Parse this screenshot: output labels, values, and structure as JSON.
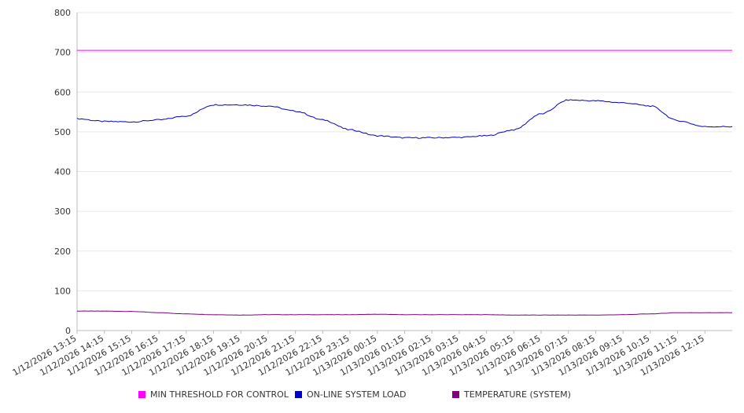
{
  "chart_data": {
    "type": "line",
    "title": "",
    "xlabel": "",
    "ylabel": "",
    "ylim": [
      0,
      800
    ],
    "y_ticks": [
      0,
      100,
      200,
      300,
      400,
      500,
      600,
      700,
      800
    ],
    "x_tick_labels": [
      "1/12/2026 13:15",
      "1/12/2026 14:15",
      "1/12/2026 15:15",
      "1/12/2026 16:15",
      "1/12/2026 17:15",
      "1/12/2026 18:15",
      "1/12/2026 19:15",
      "1/12/2026 20:15",
      "1/12/2026 21:15",
      "1/12/2026 22:15",
      "1/12/2026 23:15",
      "1/13/2026 00:15",
      "1/13/2026 01:15",
      "1/13/2026 02:15",
      "1/13/2026 03:15",
      "1/13/2026 04:15",
      "1/13/2026 05:15",
      "1/13/2026 06:15",
      "1/13/2026 07:15",
      "1/13/2026 08:15",
      "1/13/2026 09:15",
      "1/13/2026 10:15",
      "1/13/2026 11:15",
      "1/13/2026 12:15"
    ],
    "grid": true,
    "legend_position": "bottom",
    "series": [
      {
        "name": "MIN THRESHOLD FOR CONTROL",
        "color": "#ff00ff",
        "values": [
          705,
          705,
          705,
          705,
          705,
          705,
          705,
          705,
          705,
          705,
          705,
          705,
          705,
          705,
          705,
          705,
          705,
          705,
          705,
          705,
          705,
          705,
          705,
          705
        ]
      },
      {
        "name": "ON-LINE SYSTEM LOAD",
        "color": "#0000cc",
        "values": [
          533,
          526,
          525,
          530,
          540,
          568,
          568,
          565,
          552,
          530,
          505,
          490,
          485,
          485,
          486,
          490,
          505,
          545,
          580,
          578,
          573,
          565,
          528,
          513
        ]
      },
      {
        "name": "TEMPERATURE (SYSTEM)",
        "color": "#800080",
        "values": [
          49,
          49,
          48,
          45,
          42,
          40,
          39,
          40,
          40,
          40,
          40,
          41,
          40,
          40,
          40,
          40,
          39,
          39,
          39,
          39,
          40,
          42,
          45,
          45
        ]
      }
    ]
  }
}
